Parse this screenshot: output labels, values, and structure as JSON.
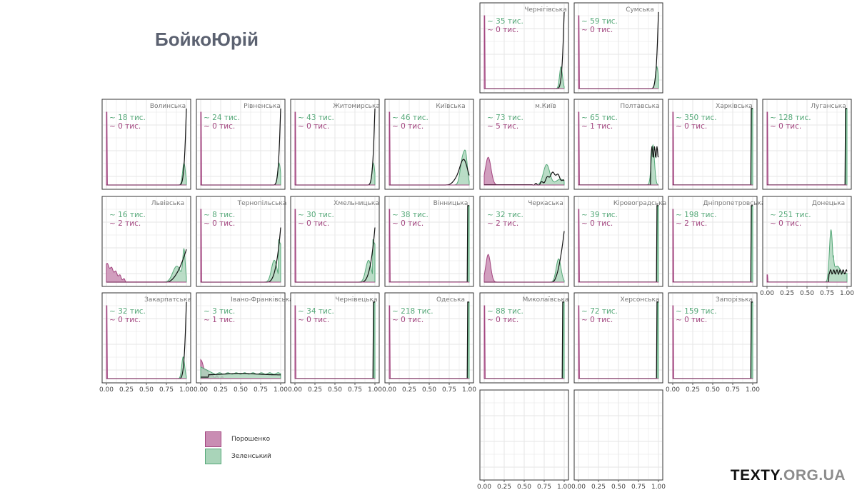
{
  "page": {
    "title": "БойкоЮрій"
  },
  "brand": {
    "part1": "TEXTY",
    "part2": ".ORG.UA"
  },
  "colors": {
    "poroshenko": "#a2457f",
    "poroshenko_fill": "#c98db3",
    "zelensky": "#55a878",
    "zelensky_fill": "#a9d4b9",
    "boyko": "#111111",
    "grid": "#e6e6e6",
    "frame": "#333333",
    "strip": "#777777"
  },
  "legend": {
    "items": [
      {
        "label": "Порошенко",
        "key": "poroshenko"
      },
      {
        "label": "Зеленський",
        "key": "zelensky"
      }
    ]
  },
  "chart_data": {
    "type": "area",
    "title": "БойкоЮрій",
    "x_ticks": [
      "0.00",
      "0.25",
      "0.50",
      "0.75",
      "1.00"
    ],
    "xlim": [
      0,
      1
    ],
    "grid": true,
    "legend_position": "bottom-left",
    "series_names": [
      "Порошенко",
      "Зеленський"
    ],
    "panels": [
      {
        "name": "Чернігівська",
        "row": 0,
        "col": 4,
        "zel": "~ 35  тис.",
        "por": "~ 0  тис.",
        "pattern": "rural",
        "zel_peak": 0.96
      },
      {
        "name": "Сумська",
        "row": 0,
        "col": 5,
        "zel": "~ 59  тис.",
        "por": "~ 0  тис.",
        "pattern": "rural",
        "zel_peak": 0.98
      },
      {
        "name": "Волинська",
        "row": 1,
        "col": 0,
        "zel": "~ 18  тис.",
        "por": "~ 0  тис.",
        "pattern": "rural",
        "zel_peak": 0.97
      },
      {
        "name": "Рівненська",
        "row": 1,
        "col": 1,
        "zel": "~ 24  тис.",
        "por": "~ 0  тис.",
        "pattern": "rural",
        "zel_peak": 0.98
      },
      {
        "name": "Житомирська",
        "row": 1,
        "col": 2,
        "zel": "~ 43  тис.",
        "por": "~ 0  тис.",
        "pattern": "rural",
        "zel_peak": 0.98
      },
      {
        "name": "Київська",
        "row": 1,
        "col": 3,
        "zel": "~ 46  тис.",
        "por": "~ 0  тис.",
        "pattern": "kyivska",
        "zel_peak": 0.92
      },
      {
        "name": "м.Київ",
        "row": 1,
        "col": 4,
        "zel": "~ 73  тис.",
        "por": "~ 5  тис.",
        "pattern": "kyiv",
        "zel_peak": 0.8
      },
      {
        "name": "Полтавська",
        "row": 1,
        "col": 5,
        "zel": "~ 65  тис.",
        "por": "~ 1  тис.",
        "pattern": "poltava",
        "zel_peak": 0.93
      },
      {
        "name": "Харківська",
        "row": 1,
        "col": 6,
        "zel": "~ 350  тис.",
        "por": "~ 0  тис.",
        "pattern": "spike",
        "zel_peak": 0.99
      },
      {
        "name": "Луганська",
        "row": 1,
        "col": 7,
        "zel": "~ 128  тис.",
        "por": "~ 0  тис.",
        "pattern": "spike",
        "zel_peak": 0.99
      },
      {
        "name": "Львівська",
        "row": 2,
        "col": 0,
        "zel": "~ 16  тис.",
        "por": "~ 2  тис.",
        "pattern": "lviv",
        "zel_peak": 0.92
      },
      {
        "name": "Тернопільська",
        "row": 2,
        "col": 1,
        "zel": "~ 8  тис.",
        "por": "~ 0  тис.",
        "pattern": "rural_wide",
        "zel_peak": 0.92
      },
      {
        "name": "Хмельницька",
        "row": 2,
        "col": 2,
        "zel": "~ 30  тис.",
        "por": "~ 0  тис.",
        "pattern": "rural_wide",
        "zel_peak": 0.92
      },
      {
        "name": "Вінницька",
        "row": 2,
        "col": 3,
        "zel": "~ 38  тис.",
        "por": "~ 0  тис.",
        "pattern": "spike",
        "zel_peak": 0.99
      },
      {
        "name": "Черкаська",
        "row": 2,
        "col": 4,
        "zel": "~ 32  тис.",
        "por": "~ 2  тис.",
        "pattern": "cherkasy",
        "zel_peak": 0.93
      },
      {
        "name": "Кіровоградська",
        "row": 2,
        "col": 5,
        "zel": "~ 39  тис.",
        "por": "~ 0  тис.",
        "pattern": "spike",
        "zel_peak": 0.99
      },
      {
        "name": "Дніпропетровська",
        "row": 2,
        "col": 6,
        "zel": "~ 198  тис.",
        "por": "~ 2  тис.",
        "pattern": "spike",
        "zel_peak": 0.99
      },
      {
        "name": "Донецька",
        "row": 2,
        "col": 7,
        "zel": "~ 251  тис.",
        "por": "~ 0  тис.",
        "pattern": "donetsk",
        "zel_peak": 0.8
      },
      {
        "name": "Закарпатська",
        "row": 3,
        "col": 0,
        "zel": "~ 32  тис.",
        "por": "~ 0  тис.",
        "pattern": "rural",
        "zel_peak": 0.96
      },
      {
        "name": "Івано-Франківська",
        "row": 3,
        "col": 1,
        "zel": "~ 3  тис.",
        "por": "~ 1  тис.",
        "pattern": "ifrank",
        "zel_peak": 0.5
      },
      {
        "name": "Чернівецька",
        "row": 3,
        "col": 2,
        "zel": "~ 34  тис.",
        "por": "~ 0  тис.",
        "pattern": "spike",
        "zel_peak": 0.99
      },
      {
        "name": "Одеська",
        "row": 3,
        "col": 3,
        "zel": "~ 218  тис.",
        "por": "~ 0  тис.",
        "pattern": "spike",
        "zel_peak": 0.99
      },
      {
        "name": "Миколаївська",
        "row": 3,
        "col": 4,
        "zel": "~ 88  тис.",
        "por": "~ 0  тис.",
        "pattern": "spike",
        "zel_peak": 0.99
      },
      {
        "name": "Херсонська",
        "row": 3,
        "col": 5,
        "zel": "~ 72  тис.",
        "por": "~ 0  тис.",
        "pattern": "spike",
        "zel_peak": 0.99
      },
      {
        "name": "Запорізька",
        "row": 3,
        "col": 6,
        "zel": "~ 159  тис.",
        "por": "~ 0  тис.",
        "pattern": "spike",
        "zel_peak": 0.99
      },
      {
        "name": "",
        "row": 4,
        "col": 4,
        "zel": "",
        "por": "",
        "pattern": "empty",
        "zel_peak": 0
      },
      {
        "name": "",
        "row": 4,
        "col": 5,
        "zel": "",
        "por": "",
        "pattern": "empty",
        "zel_peak": 0
      }
    ],
    "x_axis_panels": [
      [
        3,
        0
      ],
      [
        3,
        1
      ],
      [
        3,
        2
      ],
      [
        3,
        3
      ],
      [
        2,
        7
      ],
      [
        4,
        4
      ],
      [
        4,
        5
      ],
      [
        3,
        6
      ]
    ]
  }
}
